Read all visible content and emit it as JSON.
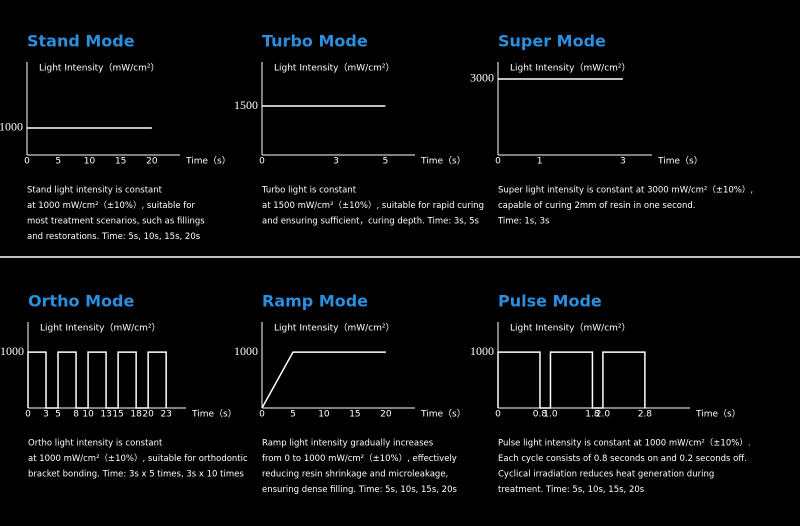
{
  "chart_data": [
    {
      "type": "line",
      "title": "Stand Mode",
      "y_label": "Light Intensity（mW/cm²）",
      "x_label": "Time（s）",
      "x": [
        0,
        20
      ],
      "values": [
        1000,
        1000
      ],
      "color": "#ffffff",
      "xlim": [
        0,
        24.5
      ],
      "xticks": [
        0,
        5,
        10,
        15,
        20
      ],
      "ylim": [
        0,
        3440
      ],
      "yticks": [
        1000
      ],
      "description": [
        "Stand light intensity is constant",
        "at 1000 mW/cm²（±10%）, suitable for",
        "most treatment scenarios, such as fillings",
        "and restorations. Time: 5s, 10s, 15s, 20s"
      ]
    },
    {
      "type": "line",
      "title": "Turbo Mode",
      "y_label": "Light Intensity（mW/cm²）",
      "x_label": "Time（s）",
      "x": [
        0,
        5
      ],
      "values": [
        1500,
        1500
      ],
      "color": "#ffffff",
      "xlim": [
        0,
        6.2
      ],
      "xticks": [
        0,
        3,
        5
      ],
      "ylim": [
        0,
        2850
      ],
      "yticks": [
        1500
      ],
      "description": [
        "Turbo light is constant",
        "at 1500 mW/cm²（±10%）, suitable for rapid curing",
        "and ensuring sufficient，curing depth. Time: 3s, 5s"
      ]
    },
    {
      "type": "line",
      "title": "Super Mode",
      "y_label": "Light Intensity（mW/cm²）",
      "x_label": "Time（s）",
      "x": [
        0,
        3
      ],
      "values": [
        3000,
        3000
      ],
      "color": "#ffffff",
      "xlim": [
        0,
        3.7
      ],
      "xticks": [
        0,
        1,
        3
      ],
      "ylim": [
        0,
        3670
      ],
      "yticks": [
        3000
      ],
      "description": [
        "Super light intensity is constant at 3000 mW/cm²（±10%）,",
        "capable of curing 2mm of resin in one second.",
        "Time: 1s, 3s"
      ]
    },
    {
      "type": "line",
      "title": "Ortho Mode",
      "y_label": "Light Intensity（mW/cm²）",
      "x_label": "Time（s）",
      "x": [
        0,
        0,
        3,
        3,
        5,
        5,
        8,
        8,
        10,
        10,
        13,
        13,
        15,
        15,
        18,
        18,
        20,
        20,
        23,
        23
      ],
      "values": [
        0,
        1000,
        1000,
        0,
        0,
        1000,
        1000,
        0,
        0,
        1000,
        1000,
        0,
        0,
        1000,
        1000,
        0,
        0,
        1000,
        1000,
        0
      ],
      "color": "#ffffff",
      "xlim": [
        0,
        26.3
      ],
      "xticks": [
        0,
        3,
        5,
        8,
        10,
        13,
        15,
        18,
        20,
        23
      ],
      "ylim": [
        0,
        1540
      ],
      "yticks": [
        1000
      ],
      "description": [
        "Ortho light intensity is constant",
        "at 1000 mW/cm²（±10%）, suitable for orthodontic",
        "bracket bonding.  Time: 3s x 5 times, 3s x 10 times"
      ]
    },
    {
      "type": "line",
      "title": "Ramp Mode",
      "y_label": "Light Intensity（mW/cm²）",
      "x_label": "Time（s）",
      "x": [
        0,
        5,
        20
      ],
      "values": [
        0,
        1000,
        1000
      ],
      "color": "#ffffff",
      "xlim": [
        0,
        24.7
      ],
      "xticks": [
        0,
        5,
        10,
        15,
        20
      ],
      "ylim": [
        0,
        1540
      ],
      "yticks": [
        1000
      ],
      "description": [
        "Ramp light intensity gradually increases",
        "from 0 to 1000 mW/cm²（±10%）, effectively",
        "reducing resin shrinkage and microleakage,",
        "ensuring dense filling.  Time: 5s, 10s, 15s, 20s"
      ]
    },
    {
      "type": "line",
      "title": "Pulse Mode",
      "y_label": "Light Intensity（mW/cm²）",
      "x_label": "Time（s）",
      "x": [
        0,
        0,
        0.8,
        0.8,
        1,
        1,
        1.8,
        1.8,
        2,
        2,
        2.8,
        2.8
      ],
      "values": [
        0,
        1000,
        1000,
        0,
        0,
        1000,
        1000,
        0,
        0,
        1000,
        1000,
        0
      ],
      "color": "#ffffff",
      "xlim": [
        0,
        3.66
      ],
      "xticks": [
        0,
        0.8,
        {
          "value": 1,
          "label": "1.0"
        },
        1.8,
        {
          "value": 2,
          "label": "2.0"
        },
        2.8
      ],
      "ylim": [
        0,
        1540
      ],
      "yticks": [
        1000
      ],
      "description": [
        "Pulse light intensity is constant at 1000 mW/cm²（±10%）.",
        "Each cycle consists of 0.8 seconds on and 0.2 seconds off.",
        "Cyclical irradiation reduces heat generation during",
        "treatment.  Time: 5s, 10s, 15s, 20s"
      ]
    }
  ]
}
